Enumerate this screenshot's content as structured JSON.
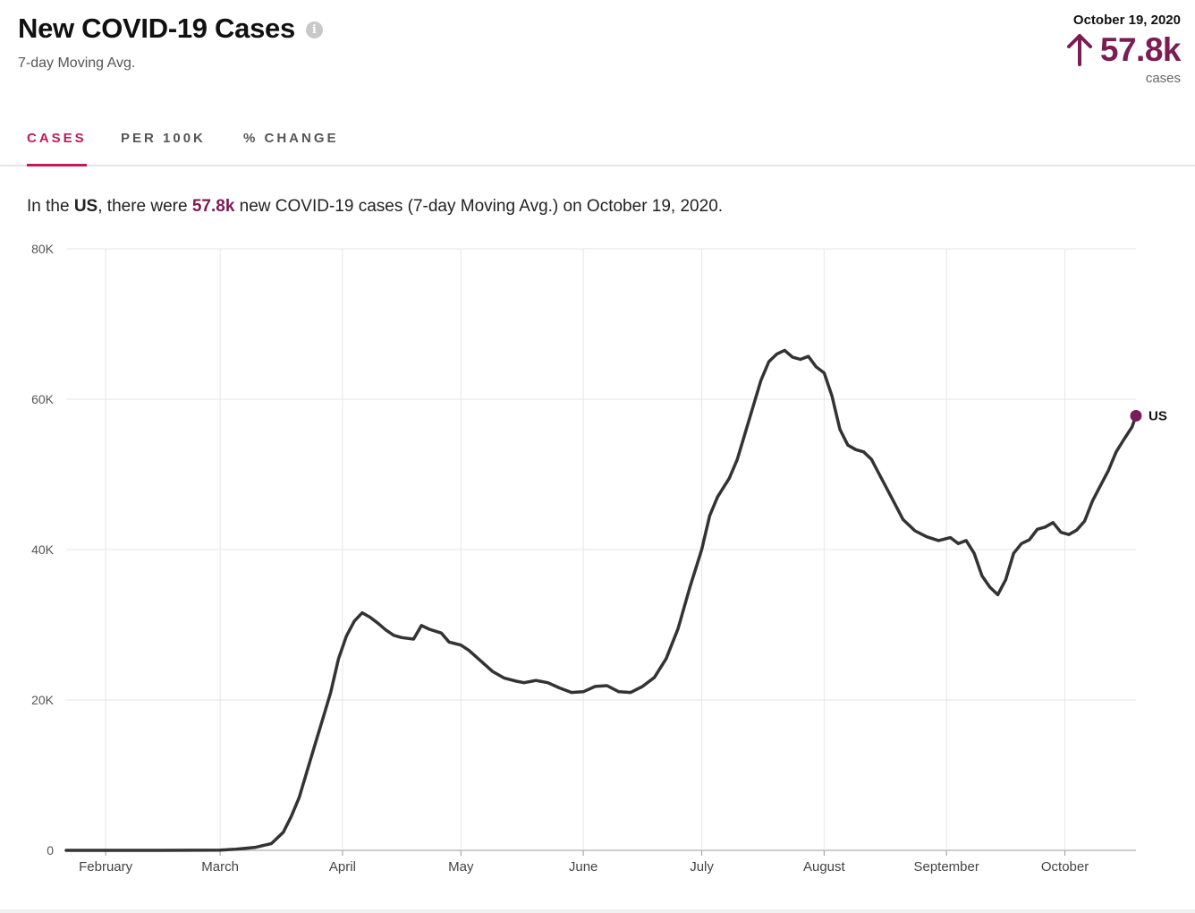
{
  "header": {
    "title": "New COVID-19 Cases",
    "info_icon": "info-icon",
    "subtitle": "7-day Moving Avg."
  },
  "summary": {
    "date": "October 19, 2020",
    "arrow_icon": "arrow-up-icon",
    "value": "57.8k",
    "unit": "cases",
    "accent_color": "#7b1c55"
  },
  "tabs": [
    {
      "label": "CASES",
      "active": true
    },
    {
      "label": "PER 100K",
      "active": false
    },
    {
      "label": "% CHANGE",
      "active": false
    }
  ],
  "description": {
    "prefix": "In the ",
    "region": "US",
    "mid": ", there were ",
    "value": "57.8k",
    "suffix": " new COVID-19 cases (7-day Moving Avg.) on October 19, 2020."
  },
  "chart_data": {
    "type": "line",
    "ylim": [
      0,
      80000
    ],
    "y_ticks": [
      0,
      20000,
      40000,
      60000,
      80000
    ],
    "y_tick_labels": [
      "0",
      "20K",
      "40K",
      "60K",
      "80K"
    ],
    "xlim": [
      "2020-01-22",
      "2020-10-19"
    ],
    "x_ticks": [
      "2020-02-01",
      "2020-03-01",
      "2020-04-01",
      "2020-05-01",
      "2020-06-01",
      "2020-07-01",
      "2020-08-01",
      "2020-09-01",
      "2020-10-01"
    ],
    "x_tick_labels": [
      "February",
      "March",
      "April",
      "May",
      "June",
      "July",
      "August",
      "September",
      "October"
    ],
    "grid": true,
    "line_color": "#333333",
    "endpoint_color": "#7b1c55",
    "series": [
      {
        "name": "US",
        "points": [
          [
            "2020-01-22",
            0
          ],
          [
            "2020-02-15",
            0
          ],
          [
            "2020-03-01",
            20
          ],
          [
            "2020-03-05",
            150
          ],
          [
            "2020-03-10",
            400
          ],
          [
            "2020-03-14",
            900
          ],
          [
            "2020-03-17",
            2400
          ],
          [
            "2020-03-19",
            4500
          ],
          [
            "2020-03-21",
            7000
          ],
          [
            "2020-03-23",
            10500
          ],
          [
            "2020-03-25",
            14000
          ],
          [
            "2020-03-27",
            17500
          ],
          [
            "2020-03-29",
            21000
          ],
          [
            "2020-03-31",
            25500
          ],
          [
            "2020-04-02",
            28500
          ],
          [
            "2020-04-04",
            30500
          ],
          [
            "2020-04-06",
            31600
          ],
          [
            "2020-04-08",
            31000
          ],
          [
            "2020-04-10",
            30200
          ],
          [
            "2020-04-12",
            29300
          ],
          [
            "2020-04-14",
            28600
          ],
          [
            "2020-04-16",
            28300
          ],
          [
            "2020-04-19",
            28100
          ],
          [
            "2020-04-21",
            29900
          ],
          [
            "2020-04-23",
            29400
          ],
          [
            "2020-04-26",
            28900
          ],
          [
            "2020-04-28",
            27700
          ],
          [
            "2020-05-01",
            27300
          ],
          [
            "2020-05-03",
            26600
          ],
          [
            "2020-05-06",
            25200
          ],
          [
            "2020-05-09",
            23800
          ],
          [
            "2020-05-12",
            22900
          ],
          [
            "2020-05-15",
            22500
          ],
          [
            "2020-05-17",
            22300
          ],
          [
            "2020-05-20",
            22600
          ],
          [
            "2020-05-23",
            22300
          ],
          [
            "2020-05-26",
            21600
          ],
          [
            "2020-05-29",
            21000
          ],
          [
            "2020-06-01",
            21100
          ],
          [
            "2020-06-04",
            21800
          ],
          [
            "2020-06-07",
            21900
          ],
          [
            "2020-06-10",
            21100
          ],
          [
            "2020-06-13",
            21000
          ],
          [
            "2020-06-16",
            21800
          ],
          [
            "2020-06-19",
            23000
          ],
          [
            "2020-06-22",
            25500
          ],
          [
            "2020-06-25",
            29500
          ],
          [
            "2020-06-28",
            35000
          ],
          [
            "2020-07-01",
            40000
          ],
          [
            "2020-07-03",
            44500
          ],
          [
            "2020-07-05",
            47000
          ],
          [
            "2020-07-08",
            49500
          ],
          [
            "2020-07-10",
            52000
          ],
          [
            "2020-07-12",
            55500
          ],
          [
            "2020-07-14",
            59000
          ],
          [
            "2020-07-16",
            62500
          ],
          [
            "2020-07-18",
            65000
          ],
          [
            "2020-07-20",
            66000
          ],
          [
            "2020-07-22",
            66500
          ],
          [
            "2020-07-24",
            65600
          ],
          [
            "2020-07-26",
            65300
          ],
          [
            "2020-07-28",
            65700
          ],
          [
            "2020-07-30",
            64300
          ],
          [
            "2020-08-01",
            63500
          ],
          [
            "2020-08-03",
            60400
          ],
          [
            "2020-08-05",
            56000
          ],
          [
            "2020-08-07",
            53900
          ],
          [
            "2020-08-09",
            53300
          ],
          [
            "2020-08-11",
            53000
          ],
          [
            "2020-08-13",
            52000
          ],
          [
            "2020-08-15",
            50000
          ],
          [
            "2020-08-18",
            47000
          ],
          [
            "2020-08-21",
            44000
          ],
          [
            "2020-08-24",
            42500
          ],
          [
            "2020-08-27",
            41700
          ],
          [
            "2020-08-30",
            41200
          ],
          [
            "2020-09-02",
            41600
          ],
          [
            "2020-09-04",
            40800
          ],
          [
            "2020-09-06",
            41200
          ],
          [
            "2020-09-08",
            39500
          ],
          [
            "2020-09-10",
            36500
          ],
          [
            "2020-09-12",
            35000
          ],
          [
            "2020-09-14",
            34000
          ],
          [
            "2020-09-16",
            36000
          ],
          [
            "2020-09-18",
            39500
          ],
          [
            "2020-09-20",
            40800
          ],
          [
            "2020-09-22",
            41300
          ],
          [
            "2020-09-24",
            42700
          ],
          [
            "2020-09-26",
            43000
          ],
          [
            "2020-09-28",
            43600
          ],
          [
            "2020-09-30",
            42300
          ],
          [
            "2020-10-02",
            42000
          ],
          [
            "2020-10-04",
            42600
          ],
          [
            "2020-10-06",
            43800
          ],
          [
            "2020-10-08",
            46500
          ],
          [
            "2020-10-10",
            48500
          ],
          [
            "2020-10-12",
            50500
          ],
          [
            "2020-10-14",
            53000
          ],
          [
            "2020-10-16",
            54700
          ],
          [
            "2020-10-18",
            56300
          ],
          [
            "2020-10-19",
            57800
          ]
        ]
      }
    ]
  }
}
